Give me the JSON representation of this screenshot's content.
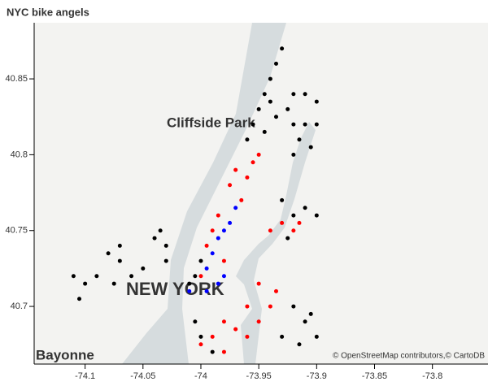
{
  "chart_data": {
    "type": "scatter",
    "title": "NYC bike angels",
    "map_labels": [
      "Cliffside Park",
      "NEW YORK",
      "Bayonne"
    ],
    "attribution": "© OpenStreetMap contributors,© CartoDB",
    "xlim": [
      -74.144,
      -73.752
    ],
    "ylim": [
      40.662,
      40.887
    ],
    "xticks": [
      -74.1,
      -74.05,
      -74,
      -73.95,
      -73.9,
      -73.85,
      -73.8
    ],
    "yticks": [
      40.7,
      40.75,
      40.8,
      40.85
    ],
    "series": [
      {
        "color": "#000000",
        "x": [
          -73.94,
          -73.935,
          -73.93,
          -73.945,
          -73.95,
          -73.94,
          -73.955,
          -73.96,
          -73.945,
          -73.935,
          -73.92,
          -73.91,
          -73.9,
          -73.92,
          -73.91,
          -73.9,
          -73.925,
          -73.915,
          -73.905,
          -73.92,
          -73.92,
          -73.93,
          -73.91,
          -73.9,
          -73.925,
          -73.92,
          -73.91,
          -73.9,
          -73.915,
          -73.905,
          -73.93,
          -74.07,
          -74.06,
          -74.05,
          -74.075,
          -74.08,
          -74.09,
          -74.1,
          -74.11,
          -74.105,
          -74.07,
          -74.04,
          -74.03,
          -74.035,
          -74.03,
          -74.01,
          -74.005,
          -74.0,
          -74.0,
          -73.99,
          -74.005
        ],
        "values": [
          40.85,
          40.86,
          40.87,
          40.84,
          40.83,
          40.835,
          40.82,
          40.81,
          40.815,
          40.825,
          40.84,
          40.84,
          40.835,
          40.82,
          40.82,
          40.82,
          40.83,
          40.81,
          40.805,
          40.8,
          40.76,
          40.77,
          40.765,
          40.76,
          40.745,
          40.7,
          40.69,
          40.68,
          40.675,
          40.695,
          40.68,
          40.73,
          40.72,
          40.725,
          40.715,
          40.735,
          40.72,
          40.715,
          40.72,
          40.705,
          40.74,
          40.745,
          40.74,
          40.75,
          40.73,
          40.715,
          40.72,
          40.73,
          40.68,
          40.67,
          40.69
        ]
      },
      {
        "color": "#ff0000",
        "x": [
          -73.97,
          -73.96,
          -73.955,
          -73.95,
          -73.975,
          -73.965,
          -73.93,
          -73.94,
          -73.92,
          -73.915,
          -73.96,
          -73.95,
          -73.96,
          -73.97,
          -73.98,
          -73.99,
          -73.94,
          -73.935,
          -73.95,
          -73.98,
          -74.0,
          -73.99,
          -73.995,
          -73.98,
          -73.985,
          -74.0
        ],
        "values": [
          40.79,
          40.785,
          40.795,
          40.8,
          40.78,
          40.77,
          40.755,
          40.75,
          40.75,
          40.755,
          40.7,
          40.69,
          40.68,
          40.685,
          40.69,
          40.68,
          40.7,
          40.71,
          40.715,
          40.67,
          40.675,
          40.75,
          40.74,
          40.73,
          40.76,
          40.72
        ]
      },
      {
        "color": "#0000ff",
        "x": [
          -73.98,
          -73.985,
          -73.975,
          -73.99,
          -73.98,
          -73.995,
          -73.985,
          -73.97,
          -73.995,
          -74.01
        ],
        "values": [
          40.75,
          40.745,
          40.755,
          40.735,
          40.72,
          40.725,
          40.715,
          40.765,
          40.71,
          40.71
        ]
      }
    ]
  }
}
